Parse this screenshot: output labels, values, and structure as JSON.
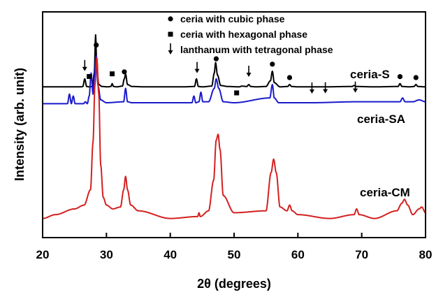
{
  "chart_data": {
    "type": "line",
    "xlabel": "2θ (degrees)",
    "ylabel": "Intensity (arb. unit)",
    "xlim": [
      20,
      80
    ],
    "xticks": [
      20,
      30,
      40,
      50,
      60,
      70,
      80
    ],
    "yticks_shown": false,
    "grid": false,
    "legend": {
      "placement": "top-center",
      "entries": [
        {
          "symbol": "circle",
          "label": "ceria with cubic phase"
        },
        {
          "symbol": "square",
          "label": "ceria with hexagonal phase"
        },
        {
          "symbol": "down-arrow",
          "label": "lanthanum with tetragonal phase"
        }
      ]
    },
    "series": [
      {
        "name": "ceria-S",
        "color": "#000000",
        "baseline": 0.88,
        "x": [
          20,
          24,
          26.0,
          26.3,
          26.6,
          26.9,
          27.3,
          27.8,
          28.1,
          28.3,
          28.5,
          28.8,
          29.3,
          30.2,
          30.7,
          30.9,
          31.1,
          31.6,
          32.5,
          32.8,
          33.0,
          33.3,
          34,
          36,
          39,
          42,
          43.8,
          44.1,
          44.4,
          45,
          46.5,
          46.9,
          47.1,
          47.4,
          47.9,
          49,
          50.8,
          51.2,
          52,
          52.3,
          52.6,
          53.4,
          55,
          55.7,
          56.0,
          56.3,
          57.2,
          58.4,
          58.7,
          59.0,
          60,
          64,
          68.5,
          68.8,
          69.1,
          72,
          75.7,
          76.0,
          76.3,
          77.5,
          78.2,
          78.5,
          78.8,
          80
        ],
        "y": [
          0.88,
          0.88,
          0.88,
          0.9,
          1.3,
          0.9,
          0.88,
          0.9,
          1.6,
          3.6,
          1.8,
          1.0,
          0.9,
          0.88,
          0.9,
          1.05,
          0.9,
          0.88,
          0.92,
          1.3,
          1.55,
          1.0,
          0.9,
          0.88,
          0.88,
          0.88,
          0.9,
          1.3,
          0.9,
          0.88,
          0.92,
          1.6,
          2.15,
          1.5,
          0.95,
          0.9,
          0.88,
          0.92,
          0.9,
          1.0,
          0.9,
          0.88,
          0.9,
          1.2,
          1.7,
          1.1,
          0.88,
          0.9,
          1.0,
          0.9,
          0.88,
          0.88,
          0.9,
          0.95,
          0.9,
          0.88,
          0.9,
          1.05,
          0.9,
          0.88,
          0.9,
          1.0,
          0.9,
          0.88
        ]
      },
      {
        "name": "ceria-SA",
        "color": "#1a1acc",
        "baseline": 0.0,
        "x": [
          20,
          23.9,
          24.2,
          24.5,
          24.8,
          25.1,
          25.4,
          26.4,
          26.7,
          27.0,
          27.3,
          27.6,
          27.9,
          28.1,
          28.4,
          28.7,
          29.1,
          30,
          32.7,
          33.0,
          33.3,
          34,
          43.4,
          43.7,
          44.0,
          44.5,
          44.8,
          45.1,
          46,
          46.9,
          47.2,
          47.6,
          48.3,
          50,
          55.6,
          56.0,
          56.3,
          57,
          62,
          69,
          76.0,
          76.4,
          76.8,
          78,
          79,
          80
        ],
        "y": [
          0.0,
          0.0,
          0.5,
          0.0,
          0.4,
          0.0,
          0.0,
          0.0,
          0.1,
          0.0,
          0.4,
          1.6,
          0.5,
          1.4,
          2.5,
          0.9,
          0.2,
          0.05,
          0.1,
          0.8,
          0.1,
          0.05,
          0.05,
          0.4,
          0.05,
          0.1,
          0.6,
          0.1,
          0.1,
          0.8,
          1.3,
          0.8,
          0.1,
          0.05,
          0.3,
          1.0,
          0.3,
          0.05,
          0.05,
          0.1,
          0.1,
          0.3,
          0.1,
          0.1,
          0.2,
          0.1
        ]
      },
      {
        "name": "ceria-CM",
        "color": "#d42020",
        "baseline": -6.0,
        "x": [
          20,
          22,
          25,
          26.5,
          27.5,
          27.9,
          28.2,
          28.5,
          28.8,
          29.1,
          29.5,
          30,
          31,
          32.2,
          32.7,
          33.0,
          33.3,
          33.8,
          35,
          40,
          44.3,
          44.5,
          44.7,
          46,
          46.8,
          47.2,
          47.5,
          47.8,
          48.3,
          50,
          55,
          55.8,
          56.2,
          56.6,
          57.2,
          58.3,
          58.7,
          59.1,
          60,
          65,
          68.8,
          69.2,
          69.6,
          72,
          75.5,
          76.3,
          76.7,
          77.2,
          78,
          79,
          79.4,
          80
        ],
        "y": [
          -6.0,
          -5.8,
          -5.5,
          -5.3,
          -4.5,
          -2.0,
          1.0,
          2.4,
          0.5,
          -3.2,
          -4.9,
          -5.3,
          -5.5,
          -5.4,
          -4.5,
          -3.8,
          -4.5,
          -5.3,
          -5.6,
          -6.0,
          -5.9,
          -5.7,
          -5.9,
          -5.6,
          -4.0,
          -1.9,
          -1.6,
          -2.4,
          -4.8,
          -5.7,
          -5.6,
          -3.6,
          -2.9,
          -3.6,
          -5.4,
          -5.6,
          -5.3,
          -5.6,
          -5.8,
          -6.0,
          -5.8,
          -5.5,
          -5.8,
          -6.0,
          -5.6,
          -5.2,
          -5.0,
          -5.3,
          -5.8,
          -5.5,
          -5.4,
          -5.7
        ]
      }
    ],
    "markers": [
      {
        "symbol": "down-arrow",
        "x": 26.6,
        "series": "ceria-S"
      },
      {
        "symbol": "circle",
        "x": 28.4,
        "series": "ceria-S"
      },
      {
        "symbol": "square",
        "x": 30.9,
        "series": "ceria-S"
      },
      {
        "symbol": "circle",
        "x": 32.8,
        "series": "ceria-S"
      },
      {
        "symbol": "down-arrow",
        "x": 44.2,
        "series": "ceria-S"
      },
      {
        "symbol": "circle",
        "x": 47.2,
        "series": "ceria-S"
      },
      {
        "symbol": "down-arrow",
        "x": 52.3,
        "series": "ceria-S"
      },
      {
        "symbol": "circle",
        "x": 56.0,
        "series": "ceria-S"
      },
      {
        "symbol": "circle",
        "x": 58.7,
        "series": "ceria-S"
      },
      {
        "symbol": "circle",
        "x": 76.0,
        "series": "ceria-S"
      },
      {
        "symbol": "circle",
        "x": 78.5,
        "series": "ceria-S"
      },
      {
        "symbol": "square",
        "x": 27.3,
        "series": "ceria-SA"
      },
      {
        "symbol": "square",
        "x": 50.4,
        "series": "ceria-SA"
      },
      {
        "symbol": "down-arrow",
        "x": 62.2,
        "series": "ceria-SA"
      },
      {
        "symbol": "down-arrow",
        "x": 64.3,
        "series": "ceria-SA"
      },
      {
        "symbol": "down-arrow",
        "x": 69.0,
        "series": "ceria-SA"
      }
    ]
  }
}
